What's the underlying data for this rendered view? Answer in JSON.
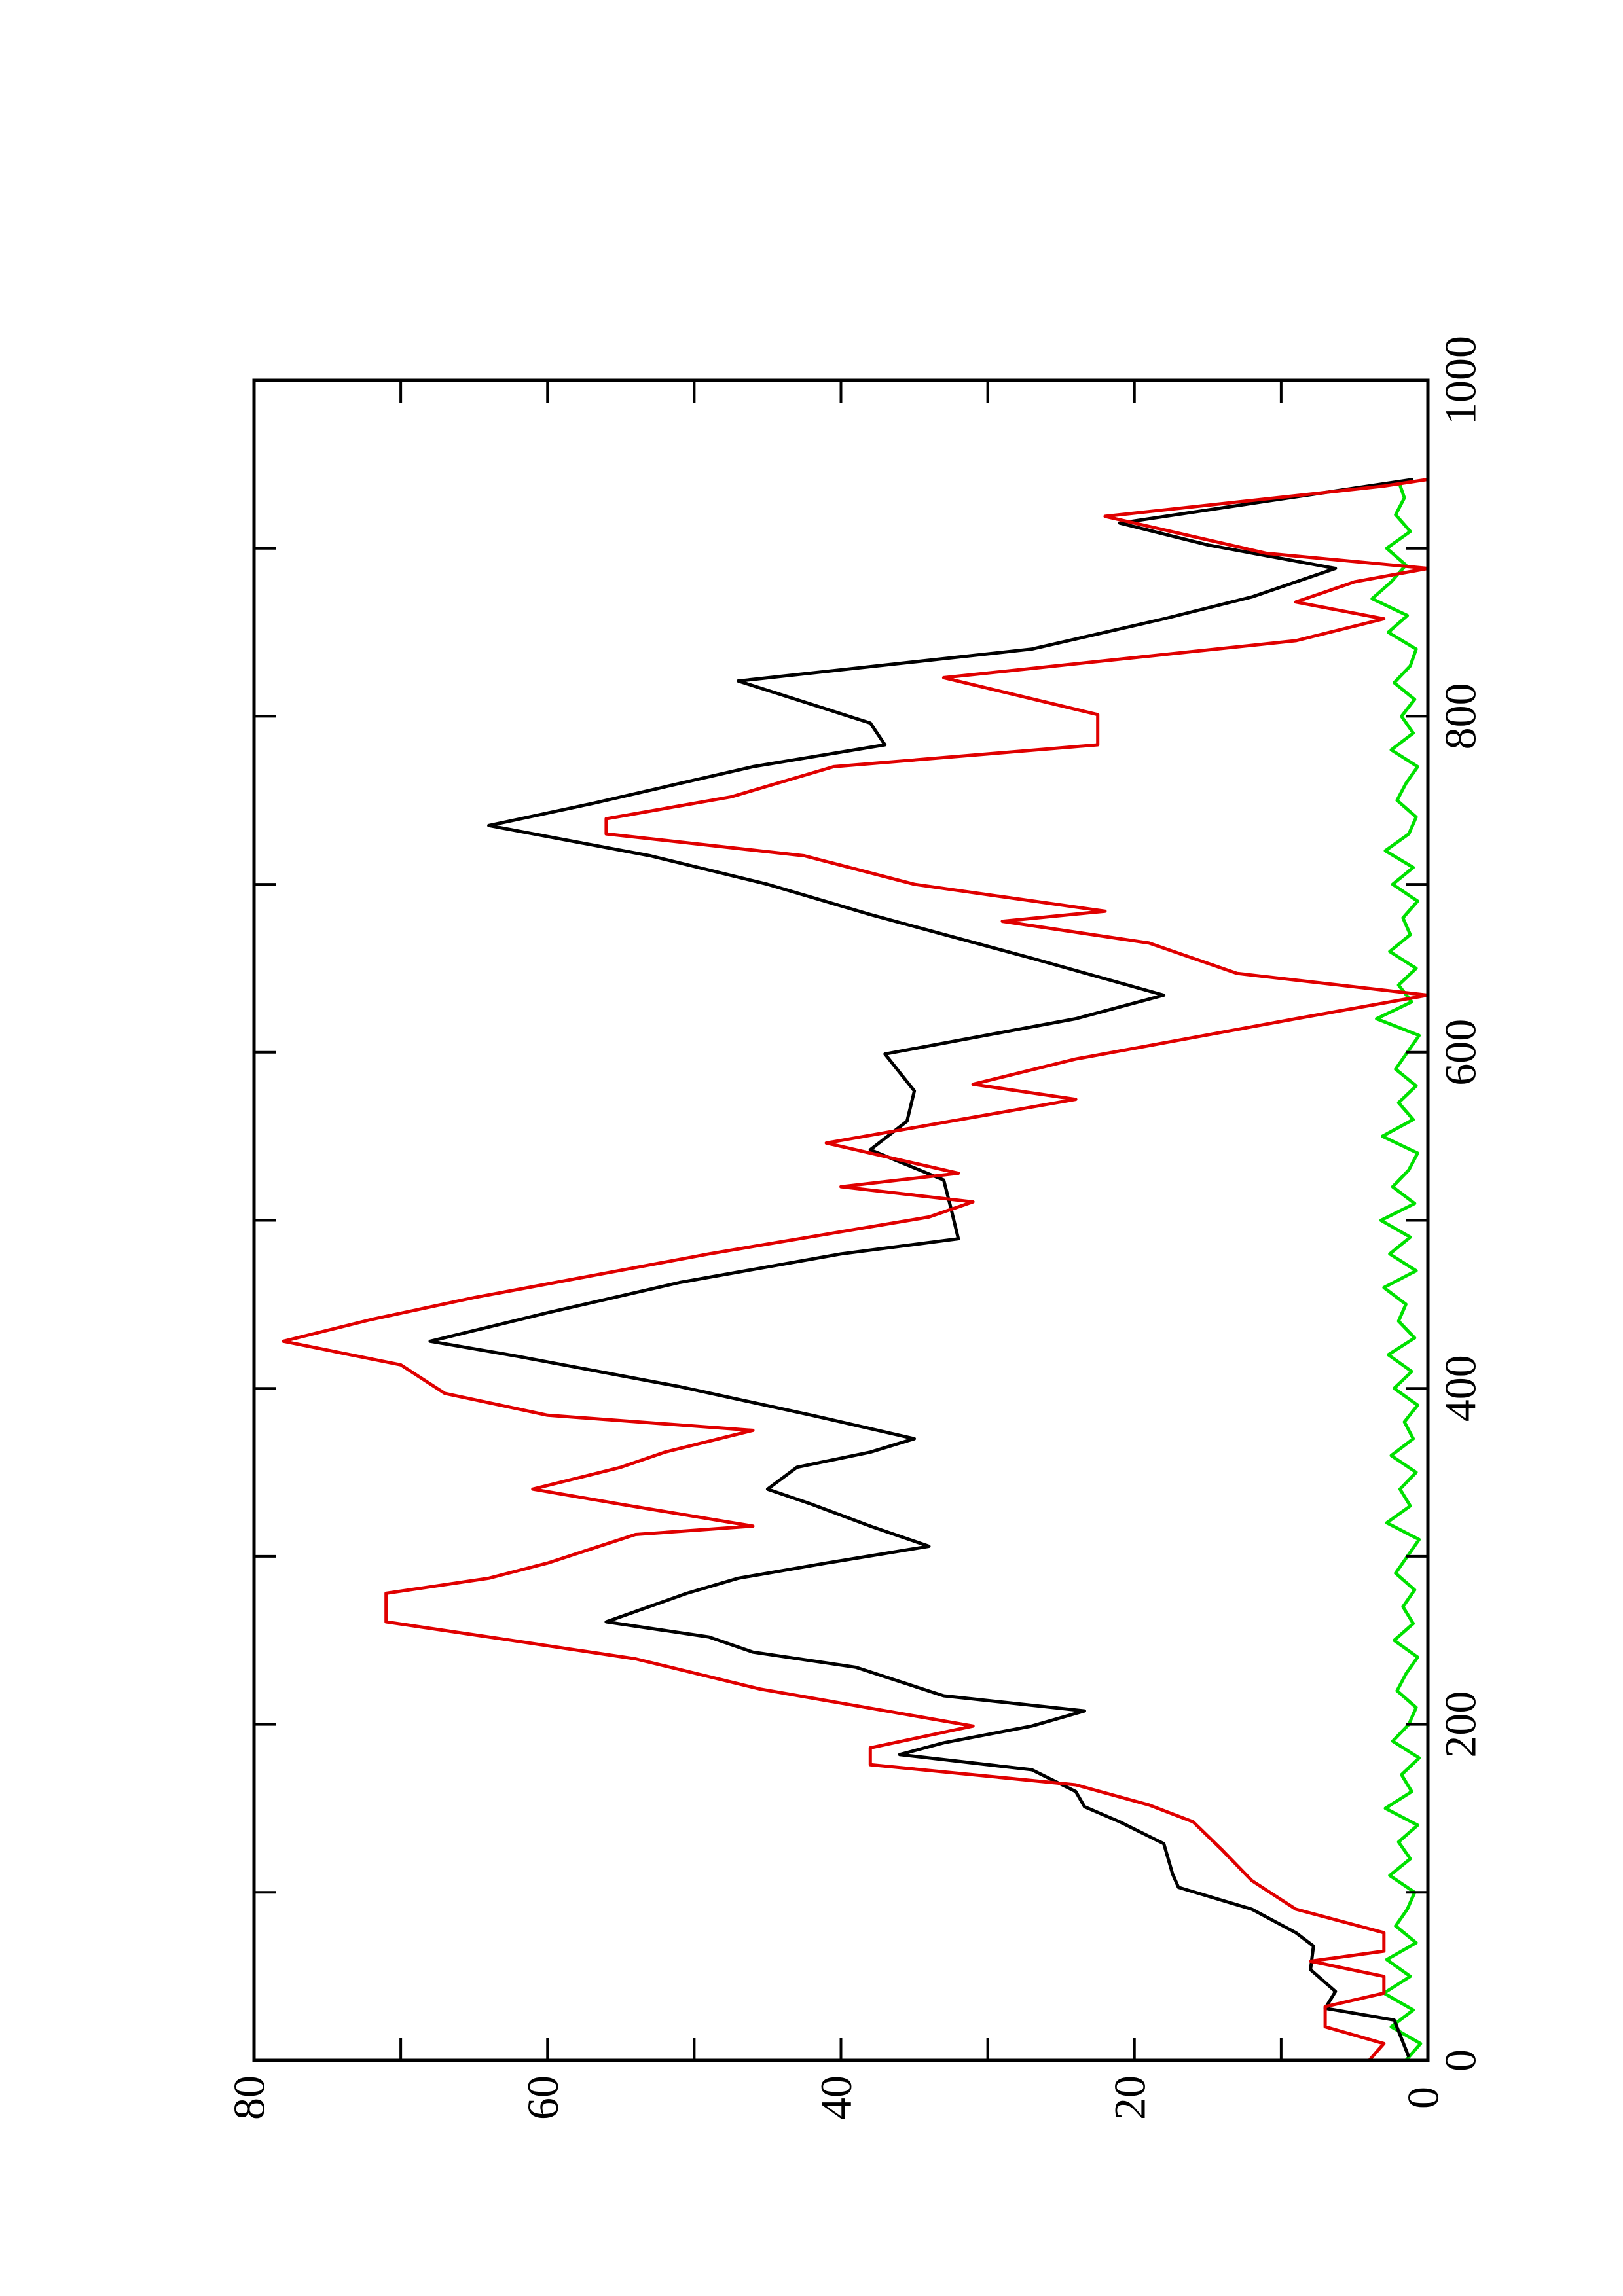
{
  "chart_data": {
    "type": "line",
    "xlim": [
      0,
      1000
    ],
    "xticks": [
      0,
      200,
      400,
      600,
      800,
      1000
    ],
    "xminorticks": [
      100,
      300,
      500,
      700,
      900
    ],
    "ylim": [
      0,
      80
    ],
    "yticks": [
      0,
      20,
      40,
      60,
      80
    ],
    "yminorticks": [
      10,
      30,
      50,
      70
    ],
    "series": [
      {
        "color": "#00e000",
        "x": [
          0,
          10,
          20,
          30,
          40,
          50,
          60,
          70,
          80,
          90,
          100,
          110,
          120,
          130,
          140,
          150,
          160,
          170,
          180,
          190,
          200,
          210,
          220,
          230,
          240,
          250,
          260,
          270,
          280,
          290,
          300,
          310,
          320,
          330,
          340,
          350,
          360,
          370,
          380,
          390,
          400,
          410,
          420,
          430,
          440,
          450,
          460,
          470,
          480,
          490,
          500,
          510,
          520,
          530,
          540,
          550,
          560,
          570,
          580,
          590,
          600,
          610,
          620,
          630,
          640,
          650,
          660,
          670,
          680,
          690,
          700,
          710,
          720,
          730,
          740,
          750,
          760,
          770,
          780,
          790,
          800,
          810,
          820,
          830,
          840,
          850,
          860,
          870,
          880,
          890,
          900,
          910,
          920,
          930,
          940
        ],
        "values": [
          1.5,
          0.5,
          2.5,
          1,
          3,
          1.2,
          2.8,
          0.8,
          2.2,
          1.4,
          0.9,
          2.6,
          1.2,
          2,
          0.7,
          2.9,
          1.1,
          1.8,
          0.6,
          2.4,
          1.3,
          0.8,
          2.1,
          1.5,
          0.7,
          2.3,
          1,
          1.7,
          0.9,
          2.2,
          1.4,
          0.6,
          2.8,
          1.2,
          1.9,
          0.8,
          2.5,
          1,
          1.6,
          0.7,
          2.3,
          1.1,
          2.7,
          0.9,
          2,
          1.5,
          3,
          0.8,
          2.6,
          1.2,
          3.2,
          0.9,
          2.4,
          1.3,
          0.7,
          3.1,
          1,
          2,
          0.8,
          2.2,
          1.4,
          0.6,
          3.5,
          1.1,
          2,
          0.8,
          2.6,
          1.2,
          1.7,
          0.7,
          2.4,
          1,
          2.9,
          1.3,
          0.8,
          2.1,
          1.5,
          0.7,
          2.5,
          1,
          1.8,
          0.9,
          2.3,
          1.2,
          0.8,
          2.7,
          1.4,
          3.8,
          2.5,
          1.5,
          2.8,
          1.2,
          2.2,
          1.6,
          2
        ]
      },
      {
        "color": "#000000",
        "x": [
          2,
          24,
          31,
          41,
          54,
          68,
          76,
          90,
          103,
          111,
          129,
          142,
          151,
          160,
          173,
          182,
          189,
          199,
          208,
          217,
          234,
          243,
          252,
          261,
          278,
          287,
          296,
          306,
          318,
          331,
          340,
          353,
          362,
          370,
          384,
          401,
          419,
          428,
          445,
          463,
          480,
          489,
          507,
          524,
          542,
          559,
          577,
          599,
          620,
          634,
          656,
          669,
          682,
          700,
          717,
          735,
          748,
          770,
          783,
          796,
          821,
          840,
          858,
          871,
          888,
          902,
          915,
          928,
          941
        ],
        "values": [
          1.3,
          2.3,
          7,
          6.3,
          8,
          7.8,
          9,
          12,
          17,
          17.4,
          18,
          21,
          23.4,
          24,
          27,
          36,
          33,
          27,
          23.4,
          33,
          39,
          46,
          49,
          56,
          50.5,
          47,
          41,
          34,
          38,
          42,
          45,
          43,
          38,
          35,
          42,
          51,
          62,
          68,
          60,
          51,
          40,
          32,
          32.5,
          33,
          38,
          35.5,
          35,
          37,
          24,
          18,
          27,
          32.5,
          38,
          45,
          53,
          64,
          57,
          46,
          37,
          38,
          47,
          27,
          18,
          12,
          6.3,
          15,
          21,
          11,
          1
        ]
      },
      {
        "color": "#e00000",
        "x": [
          0,
          10,
          20,
          32,
          40,
          50,
          59,
          65,
          76,
          90,
          107,
          125,
          142,
          152,
          164,
          176,
          186,
          199,
          221,
          239,
          252,
          261,
          278,
          287,
          296,
          313,
          318,
          331,
          340,
          353,
          362,
          375,
          384,
          397,
          414,
          428,
          441,
          454,
          467,
          480,
          502,
          511,
          520,
          528,
          546,
          559,
          572,
          581,
          596,
          620,
          634,
          647,
          665,
          678,
          684,
          700,
          717,
          730,
          739,
          752,
          770,
          783,
          801,
          823,
          845,
          858,
          868,
          880,
          888,
          897,
          919,
          937,
          941
        ],
        "values": [
          4,
          3,
          7,
          7,
          3,
          3,
          8,
          3,
          3,
          9,
          12,
          14,
          16,
          19,
          24,
          38,
          38,
          31,
          45.5,
          54,
          64,
          71,
          71,
          64,
          60,
          54,
          46,
          55,
          61,
          55,
          52,
          46,
          60,
          67,
          70,
          78,
          72,
          65,
          57,
          49,
          34,
          31,
          40,
          32,
          41,
          32.5,
          24,
          31,
          24,
          9,
          0,
          13,
          19,
          29,
          22,
          35,
          42.5,
          56,
          56,
          47.5,
          40.5,
          22.5,
          22.5,
          33,
          9,
          3,
          9,
          5,
          0,
          11,
          22,
          3,
          0
        ]
      }
    ]
  }
}
